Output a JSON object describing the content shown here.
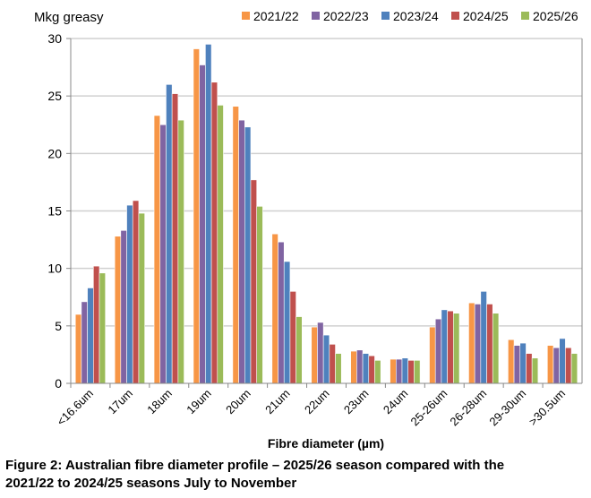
{
  "chart_data": {
    "type": "bar",
    "ylabel": "Mkg greasy",
    "xlabel": "Fibre diameter (µm)",
    "ylim": [
      0,
      30
    ],
    "yticks": [
      "0",
      "5",
      "10",
      "15",
      "20",
      "25",
      "30"
    ],
    "grid": true,
    "legend_position": "top",
    "categories": [
      "<16.6um",
      "17um",
      "18um",
      "19um",
      "20um",
      "21um",
      "22um",
      "23um",
      "24um",
      "25-26um",
      "26-28um",
      "29-30um",
      ">30.5um"
    ],
    "series": [
      {
        "name": "2021/22",
        "color": "#F79646",
        "values": [
          6.0,
          12.8,
          23.3,
          29.1,
          24.1,
          13.0,
          4.9,
          2.8,
          2.1,
          4.9,
          7.0,
          3.8,
          3.3
        ]
      },
      {
        "name": "2022/23",
        "color": "#8064A2",
        "values": [
          7.1,
          13.3,
          22.5,
          27.7,
          22.9,
          12.3,
          5.3,
          2.9,
          2.1,
          5.6,
          6.9,
          3.3,
          3.1
        ]
      },
      {
        "name": "2023/24",
        "color": "#4F81BD",
        "values": [
          8.3,
          15.5,
          26.0,
          29.5,
          22.3,
          10.6,
          4.2,
          2.6,
          2.2,
          6.4,
          8.0,
          3.5,
          3.9
        ]
      },
      {
        "name": "2024/25",
        "color": "#C0504D",
        "values": [
          10.2,
          15.9,
          25.2,
          26.2,
          17.7,
          8.0,
          3.4,
          2.4,
          2.0,
          6.3,
          6.9,
          2.6,
          3.1
        ]
      },
      {
        "name": "2025/26",
        "color": "#9BBB59",
        "values": [
          9.6,
          14.8,
          22.9,
          24.2,
          15.4,
          5.8,
          2.6,
          2.0,
          2.0,
          6.1,
          6.1,
          2.2,
          2.6
        ]
      }
    ]
  },
  "caption": {
    "line1": "Figure 2: Australian fibre diameter profile – 2025/26 season compared with the",
    "line2": "2021/22 to 2024/25 seasons July to November"
  }
}
